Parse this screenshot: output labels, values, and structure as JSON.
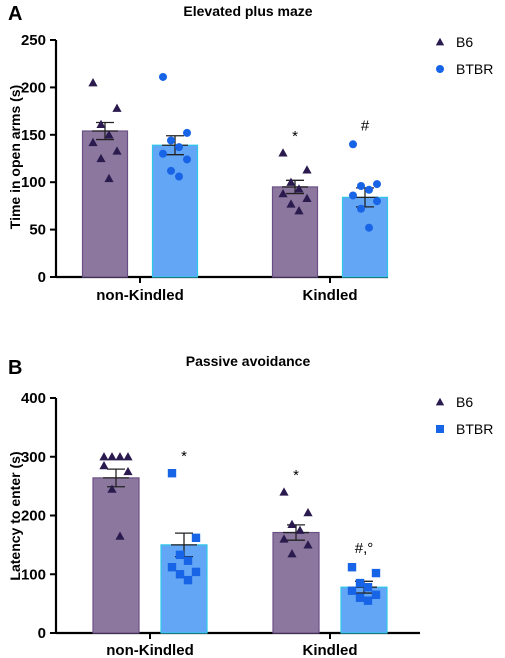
{
  "chart_data": [
    {
      "type": "bar",
      "panel": "A",
      "title": "Elevated plus maze",
      "ylabel": "Time in open arms (s)",
      "xlabel": "",
      "ylim": [
        0,
        250
      ],
      "yticks": [
        0,
        50,
        100,
        150,
        200,
        250
      ],
      "categories": [
        "non-Kindled",
        "Kindled"
      ],
      "legend_position": "right",
      "series": [
        {
          "name": "B6",
          "marker": "triangle",
          "bar_color": "#8c789f",
          "bar_stroke": "#6a4f86",
          "marker_color": "#2a1a4e",
          "values": [
            154,
            95
          ],
          "sem": [
            9,
            7
          ],
          "points": [
            [
              205,
              178,
              161,
              150,
              142,
              133,
              125,
              104
            ],
            [
              131,
              113,
              100,
              93,
              88,
              83,
              77,
              70
            ]
          ],
          "annotations": [
            "",
            "*"
          ]
        },
        {
          "name": "BTBR",
          "marker": "circle",
          "bar_color": "#63a6f6",
          "bar_stroke": "#2ec7e6",
          "marker_color": "#1864e6",
          "values": [
            139,
            84
          ],
          "sem": [
            10,
            10
          ],
          "points": [
            [
              211,
              152,
              144,
              137,
              130,
              124,
              112,
              106
            ],
            [
              140,
              98,
              96,
              92,
              86,
              80,
              72,
              52
            ]
          ],
          "annotations": [
            "",
            "#"
          ]
        }
      ]
    },
    {
      "type": "bar",
      "panel": "B",
      "title": "Passive avoidance",
      "ylabel": "Latency to enter (s)",
      "xlabel": "",
      "ylim": [
        0,
        400
      ],
      "yticks": [
        0,
        100,
        200,
        300,
        400
      ],
      "categories": [
        "non-Kindled",
        "Kindled"
      ],
      "legend_position": "right",
      "series": [
        {
          "name": "B6",
          "marker": "triangle",
          "bar_color": "#8c789f",
          "bar_stroke": "#6a4f86",
          "marker_color": "#2a1a4e",
          "values": [
            264,
            171
          ],
          "sem": [
            15,
            13
          ],
          "points": [
            [
              300,
              300,
              300,
              300,
              285,
              275,
              245,
              165
            ],
            [
              240,
              205,
              185,
              175,
              160,
              150,
              135
            ]
          ],
          "annotations": [
            "",
            "*"
          ]
        },
        {
          "name": "BTBR",
          "marker": "square",
          "bar_color": "#63a6f6",
          "bar_stroke": "#2ec7e6",
          "marker_color": "#1864e6",
          "values": [
            150,
            78
          ],
          "sem": [
            20,
            10
          ],
          "points": [
            [
              272,
              162,
              133,
              123,
              112,
              104,
              100,
              90
            ],
            [
              112,
              102,
              85,
              78,
              72,
              65,
              60,
              55
            ]
          ],
          "annotations": [
            "*",
            "#,°"
          ]
        }
      ]
    }
  ]
}
